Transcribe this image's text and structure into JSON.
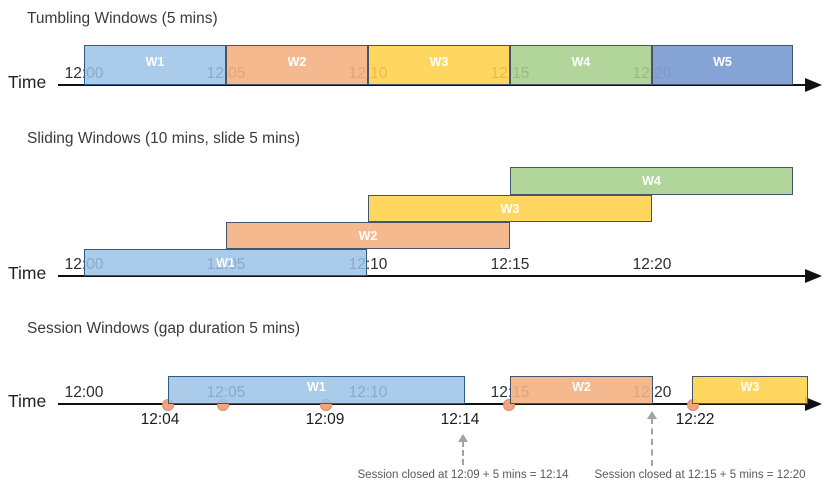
{
  "colors": {
    "blue": {
      "fill": "rgba(154,193,229,0.84)",
      "border": "#2f5b87"
    },
    "orange": {
      "fill": "rgba(243,177,131,0.90)",
      "border": "#44546a"
    },
    "yellow": {
      "fill": "rgba(255,210,74,0.88)",
      "border": "#44546a"
    },
    "green": {
      "fill": "rgba(167,207,141,0.88)",
      "border": "#44546a"
    },
    "blue2": {
      "fill": "rgba(128,158,212,0.95)",
      "border": "#44546a"
    },
    "timeline": "#111111",
    "event_dot_fill": "#f2a47e",
    "event_dot_border": "#d98e66",
    "annotation_text": "#595959",
    "dashed_arrow": "#a3a3a3"
  },
  "sections": [
    {
      "id": "tumbling",
      "title": "Tumbling Windows (5 mins)",
      "time_label": "Time",
      "ticks": [
        "12:00",
        "12:05",
        "12:10",
        "12:15",
        "12:20"
      ],
      "windows": [
        {
          "label": "W1",
          "color": "blue",
          "start": "12:00",
          "end": "12:05"
        },
        {
          "label": "W2",
          "color": "orange",
          "start": "12:05",
          "end": "12:10"
        },
        {
          "label": "W3",
          "color": "yellow",
          "start": "12:10",
          "end": "12:15"
        },
        {
          "label": "W4",
          "color": "green",
          "start": "12:15",
          "end": "12:20"
        },
        {
          "label": "W5",
          "color": "blue2",
          "start": "12:20",
          "end": null
        }
      ]
    },
    {
      "id": "sliding",
      "title": "Sliding Windows (10 mins, slide 5 mins)",
      "time_label": "Time",
      "ticks": [
        "12:00",
        "12:05",
        "12:10",
        "12:15",
        "12:20"
      ],
      "windows": [
        {
          "label": "W1",
          "color": "blue",
          "start": "12:00",
          "end": "12:10"
        },
        {
          "label": "W2",
          "color": "orange",
          "start": "12:05",
          "end": "12:15"
        },
        {
          "label": "W3",
          "color": "yellow",
          "start": "12:10",
          "end": "12:20"
        },
        {
          "label": "W4",
          "color": "green",
          "start": "12:15",
          "end": null
        }
      ]
    },
    {
      "id": "session",
      "title": "Session Windows (gap duration 5 mins)",
      "time_label": "Time",
      "ticks": [
        "12:00",
        "12:05",
        "12:10",
        "12:15",
        "12:20"
      ],
      "windows": [
        {
          "label": "W1",
          "color": "blue",
          "start": "12:04",
          "end": "12:14"
        },
        {
          "label": "W2",
          "color": "orange",
          "start": "12:15",
          "end": "12:20"
        },
        {
          "label": "W3",
          "color": "yellow",
          "start": "12:22",
          "end": null
        }
      ],
      "events": [
        {
          "time": "12:04"
        },
        {
          "time": ""
        },
        {
          "time": "12:09"
        },
        {
          "time": "12:15"
        },
        {
          "time": "12:22"
        }
      ],
      "below_labels": [
        "12:04",
        "12:09",
        "12:14",
        "12:22"
      ],
      "annotations": [
        "Session closed at 12:09 + 5 mins = 12:14",
        "Session closed at 12:15 + 5 mins = 12:20"
      ]
    }
  ]
}
